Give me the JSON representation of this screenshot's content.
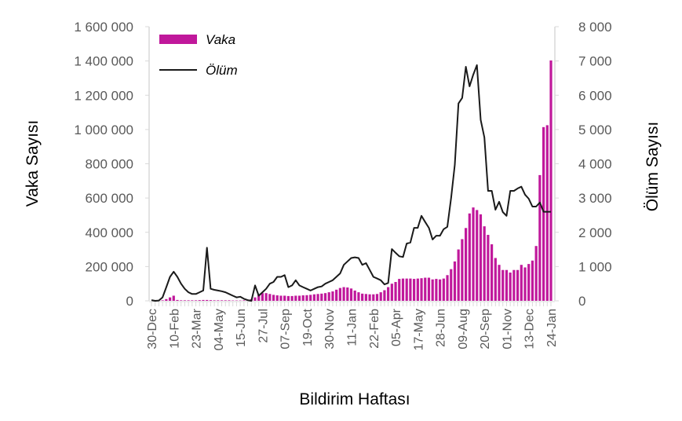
{
  "chart_data": {
    "type": "bar+line",
    "xlabel": "Bildirim Haftası",
    "ylabel_left": "Vaka Sayısı",
    "ylabel_right": "Ölüm Sayısı",
    "ylim_left": [
      0,
      1600000
    ],
    "ylim_right": [
      0,
      8000
    ],
    "yticks_left": [
      "0",
      "200 000",
      "400 000",
      "600 000",
      "800 000",
      "1 000 000",
      "1 200 000",
      "1 400 000",
      "1 600 000"
    ],
    "yticks_right": [
      "0",
      "1 000",
      "2 000",
      "3 000",
      "4 000",
      "5 000",
      "6 000",
      "7 000",
      "8 000"
    ],
    "xtick_labels": [
      "30-Dec",
      "10-Feb",
      "23-Mar",
      "04-May",
      "15-Jun",
      "27-Jul",
      "07-Sep",
      "19-Oct",
      "30-Nov",
      "11-Jan",
      "22-Feb",
      "05-Apr",
      "17-May",
      "28-Jun",
      "09-Aug",
      "20-Sep",
      "01-Nov",
      "13-Dec",
      "24-Jan"
    ],
    "xtick_every_weeks": 6,
    "legend": {
      "position": "top-left",
      "entries": [
        "Vaka",
        "Ölüm"
      ]
    },
    "colors": {
      "cases": "#C0189B",
      "deaths": "#1a1a1a",
      "axis": "#d9d9d9",
      "text": "#595959"
    },
    "series": [
      {
        "name": "Vaka",
        "type": "bar",
        "axis": "left",
        "unit": "thousands",
        "values": [
          0,
          0,
          1,
          3,
          10,
          20,
          30,
          5,
          3,
          3,
          3,
          3,
          3,
          4,
          5,
          5,
          4,
          3,
          3,
          3,
          3,
          3,
          2,
          2,
          2,
          3,
          5,
          10,
          20,
          35,
          45,
          45,
          40,
          35,
          32,
          30,
          30,
          28,
          28,
          30,
          30,
          32,
          33,
          35,
          38,
          40,
          42,
          45,
          50,
          55,
          65,
          75,
          80,
          78,
          72,
          60,
          50,
          42,
          40,
          38,
          38,
          40,
          50,
          62,
          80,
          100,
          110,
          128,
          130,
          130,
          130,
          128,
          130,
          132,
          135,
          135,
          125,
          128,
          125,
          130,
          150,
          185,
          230,
          300,
          360,
          425,
          510,
          545,
          530,
          505,
          435,
          385,
          330,
          250,
          210,
          180,
          180,
          165,
          180,
          180,
          210,
          195,
          215,
          235,
          320,
          734,
          1014,
          1025,
          1403
        ]
      },
      {
        "name": "Ölüm",
        "type": "line",
        "axis": "right",
        "values": [
          20,
          0,
          10,
          100,
          400,
          700,
          850,
          700,
          500,
          350,
          250,
          200,
          200,
          250,
          300,
          1550,
          350,
          320,
          300,
          280,
          250,
          200,
          150,
          100,
          120,
          60,
          20,
          0,
          450,
          150,
          250,
          350,
          500,
          550,
          700,
          700,
          750,
          400,
          450,
          600,
          450,
          400,
          350,
          300,
          350,
          400,
          420,
          500,
          550,
          600,
          700,
          800,
          1050,
          1150,
          1250,
          1270,
          1250,
          1050,
          1100,
          900,
          700,
          650,
          600,
          480,
          520,
          1510,
          1400,
          1300,
          1280,
          1670,
          1700,
          2130,
          2130,
          2480,
          2300,
          2130,
          1790,
          1900,
          1900,
          2090,
          2160,
          3000,
          3970,
          5760,
          5920,
          6830,
          6260,
          6600,
          6880,
          5280,
          4770,
          3210,
          3210,
          2660,
          2890,
          2590,
          2480,
          3210,
          3210,
          3280,
          3330,
          3100,
          2980,
          2750,
          2750,
          2870,
          2600,
          2600,
          2600
        ]
      }
    ]
  }
}
